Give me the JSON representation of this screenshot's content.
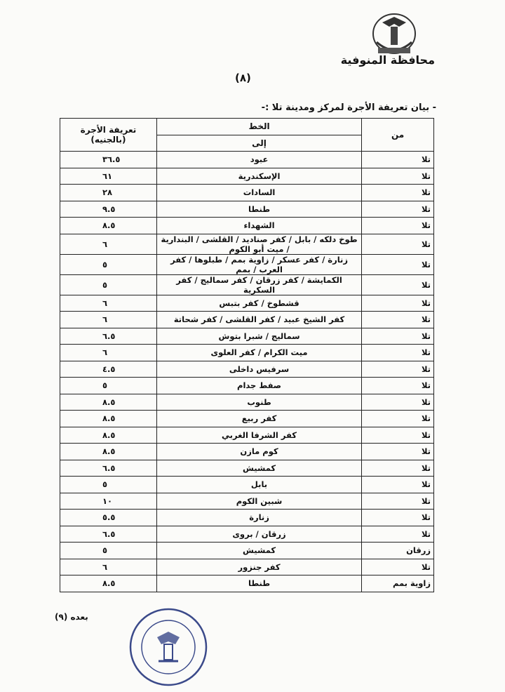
{
  "header": {
    "authority": "محافظة المنوفية",
    "page_number": "(٨)",
    "statement": "- بيان تعريفة الأجرة لمركز ومدينة تلا :-"
  },
  "table": {
    "columns": {
      "fare": "تعريفة الأجرة (بالجنيه)",
      "line": "الخط",
      "to": "إلى",
      "from": "من"
    },
    "rows": [
      [
        "تلا",
        "عبود",
        "٣٦.٥"
      ],
      [
        "تلا",
        "الإسكندرية",
        "٦١"
      ],
      [
        "تلا",
        "السادات",
        "٢٨"
      ],
      [
        "تلا",
        "طنطا",
        "٩.٥"
      ],
      [
        "تلا",
        "الشهداء",
        "٨.٥"
      ],
      [
        "تلا",
        "طوخ دلكه / بابل / كفر صناديد / القلشى / البندارية / ميت أبو الكوم",
        "٦"
      ],
      [
        "تلا",
        "زنارة / كفر عسكر / زاوية بمم / طبلوها / كفر العرب / بمم",
        "٥"
      ],
      [
        "تلا",
        "الكمايشة / كفر زرقان / كفر سماليج / كفر السكرية",
        "٥"
      ],
      [
        "تلا",
        "قشطوخ / كفر بتبس",
        "٦"
      ],
      [
        "تلا",
        "كفر الشيخ عبيد / كفر القلشى / كفر شحاتة",
        "٦"
      ],
      [
        "تلا",
        "سماليج / شبرا بتوش",
        "٦.٥"
      ],
      [
        "تلا",
        "ميت الكرام / كفر العلوى",
        "٦"
      ],
      [
        "تلا",
        "سرفيس داخلى",
        "٤.٥"
      ],
      [
        "تلا",
        "صفط جدام",
        "٥"
      ],
      [
        "تلا",
        "طنوب",
        "٨.٥"
      ],
      [
        "تلا",
        "كفر ربيع",
        "٨.٥"
      ],
      [
        "تلا",
        "كفر الشرفا الغربي",
        "٨.٥"
      ],
      [
        "تلا",
        "كوم مازن",
        "٨.٥"
      ],
      [
        "تلا",
        "كمشيش",
        "٦.٥"
      ],
      [
        "تلا",
        "بابل",
        "٥"
      ],
      [
        "تلا",
        "شبين الكوم",
        "١٠"
      ],
      [
        "تلا",
        "زنارة",
        "٥.٥"
      ],
      [
        "تلا",
        "زرقان / بروى",
        "٦.٥"
      ],
      [
        "زرقان",
        "كمشيش",
        "٥"
      ],
      [
        "تلا",
        "كفر جنزور",
        "٦"
      ],
      [
        "زاوية بمم",
        "طنطا",
        "٨.٥"
      ]
    ]
  },
  "footer": {
    "continued": "بعده (٩)"
  }
}
